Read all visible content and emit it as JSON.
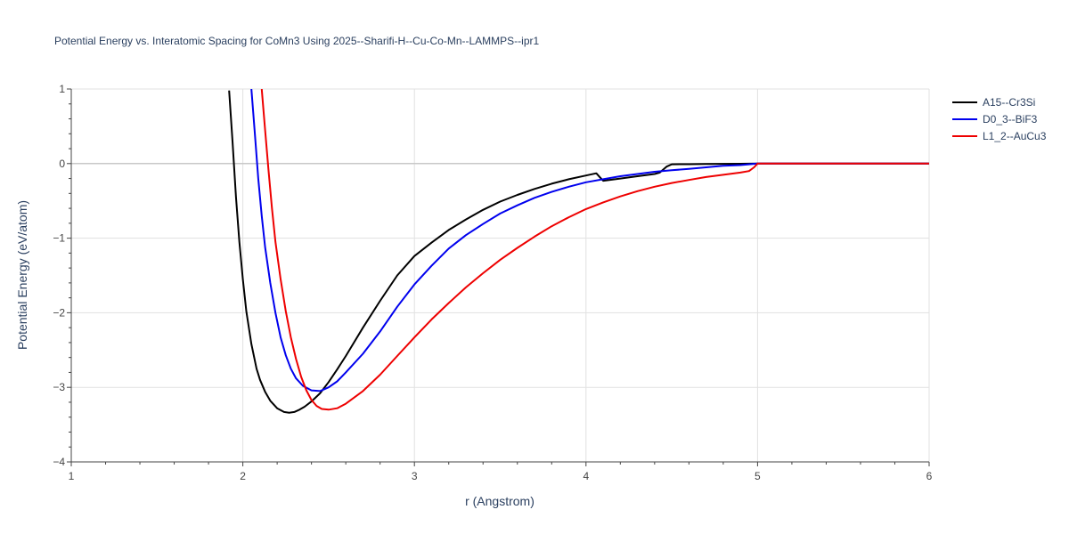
{
  "chart_data": {
    "type": "line",
    "title": "Potential Energy vs. Interatomic Spacing for CoMn3 Using 2025--Sharifi-H--Cu-Co-Mn--LAMMPS--ipr1",
    "xlabel": "r (Angstrom)",
    "ylabel": "Potential Energy (eV/atom)",
    "xlim": [
      1,
      6
    ],
    "ylim": [
      -4,
      1
    ],
    "xticks": [
      "1",
      "2",
      "3",
      "4",
      "5",
      "6"
    ],
    "yticks": [
      "−4",
      "−3",
      "−2",
      "−1",
      "0",
      "1"
    ],
    "grid": true,
    "legend_position": "top-right",
    "series": [
      {
        "name": "A15--Cr3Si",
        "color": "#000000",
        "x": [
          1.92,
          1.94,
          1.96,
          1.98,
          2.0,
          2.02,
          2.05,
          2.08,
          2.1,
          2.13,
          2.16,
          2.2,
          2.24,
          2.27,
          2.3,
          2.33,
          2.36,
          2.4,
          2.45,
          2.5,
          2.55,
          2.6,
          2.7,
          2.8,
          2.9,
          3.0,
          3.1,
          3.2,
          3.3,
          3.4,
          3.5,
          3.6,
          3.7,
          3.8,
          3.9,
          4.0,
          4.06,
          4.08,
          4.1,
          4.2,
          4.3,
          4.4,
          4.43,
          4.47,
          4.5,
          4.6,
          4.7,
          4.8,
          4.9,
          5.0,
          5.5,
          6.0
        ],
        "y": [
          0.98,
          0.3,
          -0.45,
          -1.05,
          -1.55,
          -1.98,
          -2.42,
          -2.75,
          -2.9,
          -3.06,
          -3.18,
          -3.28,
          -3.33,
          -3.34,
          -3.33,
          -3.3,
          -3.26,
          -3.19,
          -3.08,
          -2.93,
          -2.76,
          -2.58,
          -2.2,
          -1.84,
          -1.5,
          -1.24,
          -1.06,
          -0.89,
          -0.75,
          -0.62,
          -0.51,
          -0.42,
          -0.34,
          -0.27,
          -0.21,
          -0.16,
          -0.13,
          -0.18,
          -0.23,
          -0.2,
          -0.17,
          -0.14,
          -0.12,
          -0.04,
          -0.01,
          -0.008,
          -0.006,
          -0.004,
          -0.002,
          0.0,
          0.0,
          0.0
        ]
      },
      {
        "name": "D0_3--BiF3",
        "color": "#0000ee",
        "x": [
          2.05,
          2.07,
          2.09,
          2.11,
          2.13,
          2.16,
          2.19,
          2.22,
          2.25,
          2.28,
          2.31,
          2.35,
          2.4,
          2.45,
          2.5,
          2.55,
          2.6,
          2.7,
          2.8,
          2.9,
          3.0,
          3.1,
          3.2,
          3.3,
          3.4,
          3.5,
          3.6,
          3.7,
          3.8,
          3.9,
          4.0,
          4.1,
          4.2,
          4.3,
          4.4,
          4.5,
          4.6,
          4.7,
          4.8,
          4.9,
          5.0,
          5.5,
          6.0
        ],
        "y": [
          1.0,
          0.4,
          -0.2,
          -0.7,
          -1.12,
          -1.6,
          -2.0,
          -2.33,
          -2.57,
          -2.75,
          -2.88,
          -2.98,
          -3.04,
          -3.05,
          -3.0,
          -2.92,
          -2.8,
          -2.55,
          -2.25,
          -1.92,
          -1.62,
          -1.37,
          -1.14,
          -0.96,
          -0.81,
          -0.67,
          -0.56,
          -0.46,
          -0.38,
          -0.31,
          -0.25,
          -0.21,
          -0.17,
          -0.14,
          -0.11,
          -0.09,
          -0.07,
          -0.05,
          -0.03,
          -0.02,
          0.0,
          0.0,
          0.0
        ]
      },
      {
        "name": "L1_2--AuCu3",
        "color": "#ee0000",
        "x": [
          2.11,
          2.13,
          2.15,
          2.17,
          2.19,
          2.22,
          2.25,
          2.28,
          2.31,
          2.34,
          2.37,
          2.4,
          2.43,
          2.46,
          2.5,
          2.55,
          2.6,
          2.7,
          2.8,
          2.9,
          3.0,
          3.1,
          3.2,
          3.3,
          3.4,
          3.5,
          3.6,
          3.7,
          3.8,
          3.9,
          4.0,
          4.1,
          4.2,
          4.3,
          4.4,
          4.5,
          4.6,
          4.7,
          4.8,
          4.9,
          4.95,
          4.98,
          5.0,
          5.5,
          6.0
        ],
        "y": [
          1.0,
          0.45,
          -0.1,
          -0.6,
          -1.05,
          -1.55,
          -1.98,
          -2.33,
          -2.62,
          -2.86,
          -3.04,
          -3.17,
          -3.25,
          -3.29,
          -3.3,
          -3.28,
          -3.22,
          -3.05,
          -2.83,
          -2.58,
          -2.33,
          -2.09,
          -1.87,
          -1.66,
          -1.47,
          -1.29,
          -1.13,
          -0.98,
          -0.84,
          -0.72,
          -0.61,
          -0.52,
          -0.44,
          -0.37,
          -0.31,
          -0.26,
          -0.22,
          -0.18,
          -0.15,
          -0.12,
          -0.1,
          -0.05,
          0.0,
          0.0,
          0.0
        ]
      }
    ]
  }
}
